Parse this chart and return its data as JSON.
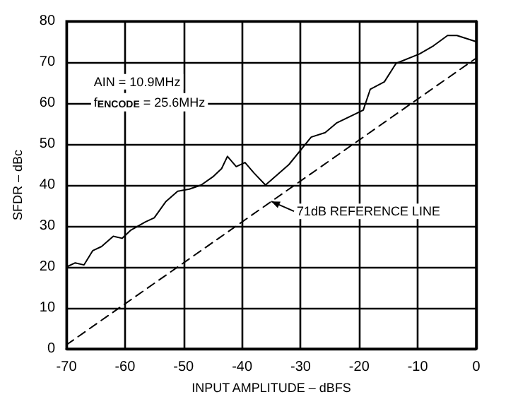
{
  "chart_data": {
    "type": "line",
    "xlabel": "INPUT AMPLITUDE – dBFS",
    "ylabel": "SFDR – dBc",
    "xlim": [
      -70,
      0
    ],
    "xticks": [
      -70,
      -60,
      -50,
      -40,
      -30,
      -20,
      -10,
      0
    ],
    "ylim": [
      0,
      80
    ],
    "yticks": [
      0,
      10,
      20,
      30,
      40,
      50,
      60,
      70,
      80
    ],
    "grid": true,
    "marker": "none",
    "series": [
      {
        "color": "#000000",
        "line_style": "solid",
        "x": [
          -70,
          -68.5,
          -67,
          -65.5,
          -64,
          -62,
          -60.5,
          -59,
          -56.5,
          -55,
          -53,
          -51,
          -49,
          -47,
          -45,
          -43.5,
          -42.5,
          -41,
          -39.5,
          -38,
          -36,
          -32,
          -28.2,
          -25.8,
          -23.8,
          -19.3,
          -18.1,
          -15.7,
          -13.7,
          -9.7,
          -7.3,
          -4.9,
          -3.3,
          0
        ],
        "values": [
          20,
          21,
          20.5,
          24,
          25,
          27.5,
          27,
          29,
          31,
          32,
          36,
          38.5,
          39,
          40,
          42,
          44,
          47,
          44.5,
          45.5,
          43,
          40,
          45,
          51.7,
          52.8,
          55.2,
          58.3,
          63.4,
          65.2,
          69.7,
          72,
          74,
          76.5,
          76.5,
          75
        ]
      },
      {
        "color": "#000000",
        "line_style": "dashed",
        "x": [
          -70,
          0
        ],
        "values": [
          1,
          71
        ]
      }
    ],
    "annotations": [
      "AIN = 10.9MHz",
      "f$_{ENCODE}$ = 25.6MHz",
      {
        "text": "71dB REFERENCE LINE",
        "x": -35,
        "y": 36
      }
    ]
  }
}
